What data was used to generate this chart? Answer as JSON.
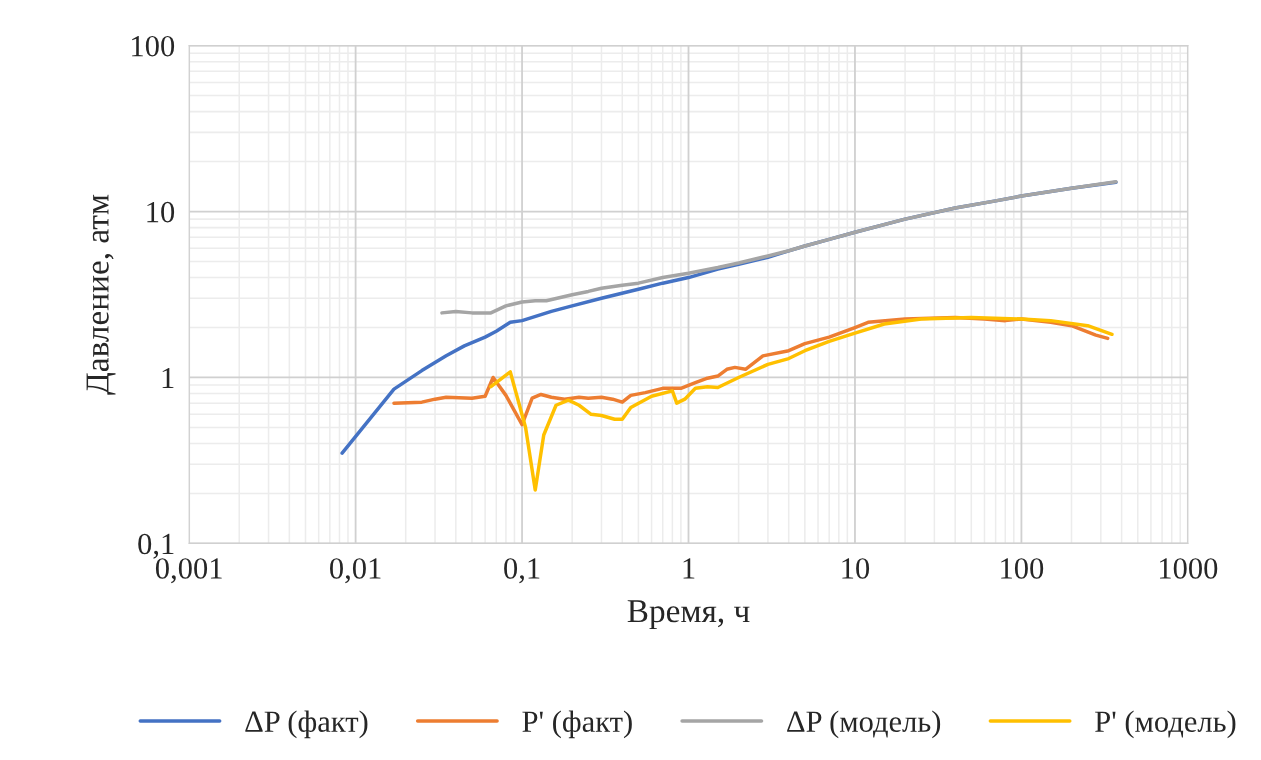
{
  "chart_data": {
    "type": "line",
    "xlabel": "Время, ч",
    "ylabel": "Давление, атм",
    "log": "xy",
    "grid": true,
    "legend": "bottom",
    "marker": "none",
    "line_style": "solid",
    "xlim": [
      0.001,
      1000
    ],
    "xticks": [
      {
        "value": 0.001,
        "label": "0,001"
      },
      {
        "value": 0.01,
        "label": "0,01"
      },
      {
        "value": 0.1,
        "label": "0,1"
      },
      1,
      10,
      100,
      1000
    ],
    "ylim": [
      0.1,
      100
    ],
    "yticks": [
      {
        "value": 0.1,
        "label": "0,1"
      },
      1,
      10,
      100
    ],
    "series": [
      {
        "name": "ΔP (факт)",
        "color": "#4472c4",
        "x": [
          0.0083,
          0.017,
          0.025,
          0.035,
          0.045,
          0.06,
          0.07,
          0.085,
          0.1,
          0.15,
          0.2,
          0.3,
          0.5,
          0.7,
          1,
          1.5,
          2,
          3,
          4,
          5,
          7,
          10,
          20,
          40,
          70,
          100,
          200,
          370
        ],
        "values": [
          0.35,
          0.85,
          1.1,
          1.35,
          1.55,
          1.75,
          1.9,
          2.15,
          2.2,
          2.5,
          2.7,
          3.0,
          3.4,
          3.7,
          4.0,
          4.5,
          4.8,
          5.3,
          5.8,
          6.2,
          6.8,
          7.5,
          9.0,
          10.5,
          11.6,
          12.4,
          13.8,
          15.0
        ]
      },
      {
        "name": "P' (факт)",
        "color": "#ed7d31",
        "x": [
          0.017,
          0.025,
          0.03,
          0.035,
          0.05,
          0.06,
          0.067,
          0.08,
          0.1,
          0.115,
          0.13,
          0.15,
          0.18,
          0.22,
          0.25,
          0.3,
          0.35,
          0.4,
          0.45,
          0.55,
          0.7,
          0.9,
          1.1,
          1.3,
          1.5,
          1.7,
          1.9,
          2.2,
          2.8,
          4,
          5,
          7,
          10,
          12,
          20,
          40,
          60,
          80,
          100,
          150,
          200,
          280,
          330
        ],
        "values": [
          0.7,
          0.71,
          0.74,
          0.76,
          0.75,
          0.77,
          1.0,
          0.78,
          0.52,
          0.75,
          0.79,
          0.76,
          0.74,
          0.76,
          0.75,
          0.76,
          0.74,
          0.71,
          0.78,
          0.81,
          0.86,
          0.86,
          0.93,
          0.99,
          1.02,
          1.12,
          1.15,
          1.12,
          1.35,
          1.45,
          1.6,
          1.75,
          2.0,
          2.15,
          2.25,
          2.3,
          2.25,
          2.2,
          2.25,
          2.15,
          2.05,
          1.8,
          1.72
        ]
      },
      {
        "name": "ΔP (модель)",
        "color": "#a5a5a5",
        "x": [
          0.033,
          0.04,
          0.05,
          0.065,
          0.08,
          0.1,
          0.12,
          0.14,
          0.2,
          0.25,
          0.3,
          0.4,
          0.5,
          0.7,
          1,
          1.5,
          2,
          3,
          4,
          5,
          7,
          10,
          20,
          40,
          70,
          100,
          200,
          370
        ],
        "values": [
          2.45,
          2.5,
          2.45,
          2.45,
          2.7,
          2.85,
          2.9,
          2.9,
          3.15,
          3.3,
          3.45,
          3.6,
          3.7,
          4.0,
          4.25,
          4.6,
          4.9,
          5.4,
          5.8,
          6.2,
          6.8,
          7.5,
          9.0,
          10.5,
          11.6,
          12.4,
          13.8,
          15.1
        ]
      },
      {
        "name": "P' (модель)",
        "color": "#ffc000",
        "x": [
          0.065,
          0.085,
          0.105,
          0.12,
          0.135,
          0.16,
          0.19,
          0.22,
          0.26,
          0.3,
          0.36,
          0.4,
          0.45,
          0.6,
          0.8,
          0.85,
          0.95,
          1.1,
          1.3,
          1.5,
          2,
          3,
          4,
          5,
          7,
          10,
          15,
          25,
          50,
          100,
          150,
          250,
          350
        ],
        "values": [
          0.88,
          1.08,
          0.5,
          0.21,
          0.45,
          0.68,
          0.73,
          0.68,
          0.6,
          0.59,
          0.56,
          0.56,
          0.66,
          0.77,
          0.83,
          0.7,
          0.74,
          0.86,
          0.88,
          0.87,
          1.0,
          1.2,
          1.3,
          1.45,
          1.65,
          1.85,
          2.1,
          2.25,
          2.3,
          2.25,
          2.2,
          2.05,
          1.82
        ]
      }
    ]
  }
}
